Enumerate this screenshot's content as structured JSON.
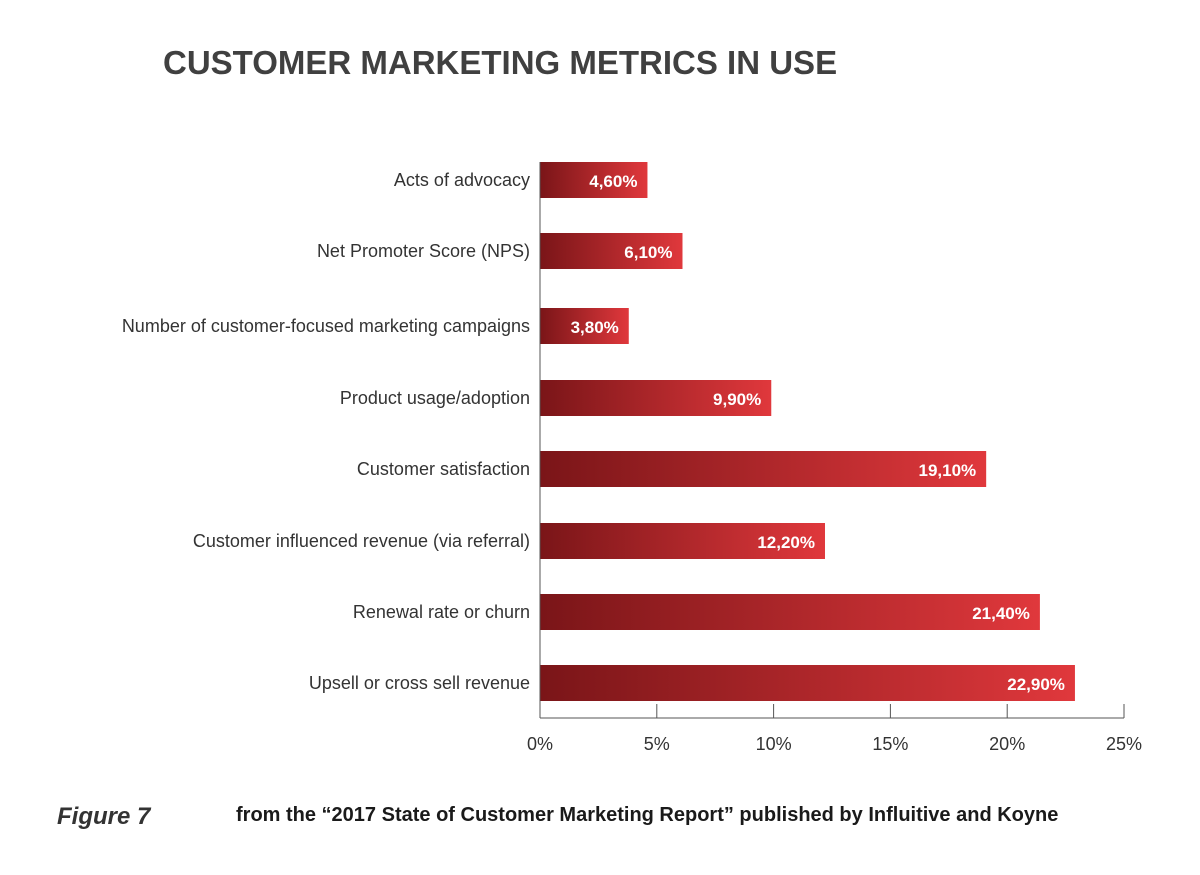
{
  "chart_data": {
    "type": "bar",
    "orientation": "horizontal",
    "title": "CUSTOMER MARKETING METRICS IN USE",
    "categories": [
      "Acts of advocacy",
      "Net Promoter Score (NPS)",
      "Number of customer-focused marketing campaigns",
      "Product usage/adoption",
      "Customer satisfaction",
      "Customer influenced revenue (via referral)",
      "Renewal rate or churn",
      "Upsell or cross sell revenue"
    ],
    "values": [
      4.6,
      6.1,
      3.8,
      9.9,
      19.1,
      12.2,
      21.4,
      22.9
    ],
    "value_labels": [
      "4,60%",
      "6,10%",
      "3,80%",
      "9,90%",
      "19,10%",
      "12,20%",
      "21,40%",
      "22,90%"
    ],
    "xlim": [
      0,
      25
    ],
    "x_ticks": [
      0,
      5,
      10,
      15,
      20,
      25
    ],
    "x_tick_labels": [
      "0%",
      "5%",
      "10%",
      "15%",
      "20%",
      "25%"
    ],
    "xlabel": "",
    "ylabel": "",
    "grid": false,
    "legend": "none",
    "colors": {
      "bar_dark": "#7a1518",
      "bar_light": "#e0383c",
      "axis": "#555555",
      "label_text": "#333333",
      "value_text": "#ffffff",
      "title_text": "#404040"
    }
  },
  "footer": {
    "figure_label": "Figure 7",
    "source": "from the “2017 State of Customer Marketing Report” published by Influitive and Koyne"
  }
}
